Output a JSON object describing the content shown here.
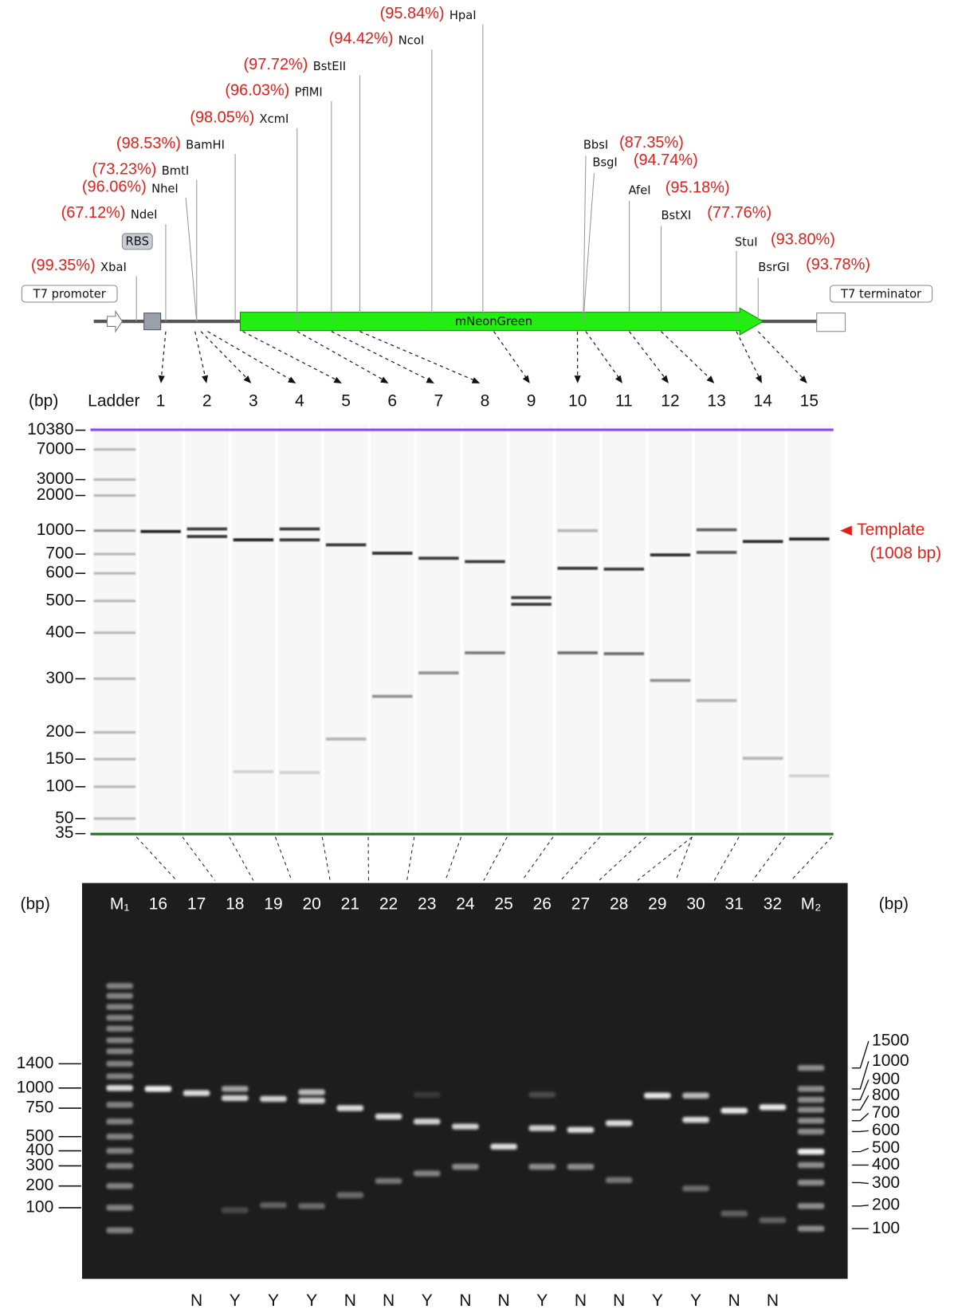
{
  "map": {
    "features": {
      "promoter": "T7 promoter",
      "rbs": "RBS",
      "gene": "mNeonGreen",
      "terminator": "T7 terminator"
    },
    "sites": [
      {
        "name": "XbaI",
        "efficiency": "(99.35%)"
      },
      {
        "name": "NdeI",
        "efficiency": "(67.12%)"
      },
      {
        "name": "NheI",
        "efficiency": "(96.06%)"
      },
      {
        "name": "BmtI",
        "efficiency": "(73.23%)"
      },
      {
        "name": "BamHI",
        "efficiency": "(98.53%)"
      },
      {
        "name": "XcmI",
        "efficiency": "(98.05%)"
      },
      {
        "name": "PflMI",
        "efficiency": "(96.03%)"
      },
      {
        "name": "BstEII",
        "efficiency": "(97.72%)"
      },
      {
        "name": "NcoI",
        "efficiency": "(94.42%)"
      },
      {
        "name": "HpaI",
        "efficiency": "(95.84%)"
      },
      {
        "name": "BbsI",
        "efficiency": "(87.35%)"
      },
      {
        "name": "BsgI",
        "efficiency": "(94.74%)"
      },
      {
        "name": "AfeI",
        "efficiency": "(95.18%)"
      },
      {
        "name": "BstXI",
        "efficiency": "(77.76%)"
      },
      {
        "name": "StuI",
        "efficiency": "(93.80%)"
      },
      {
        "name": "BsrGI",
        "efficiency": "(93.78%)"
      }
    ]
  },
  "gel_top": {
    "unit": "(bp)",
    "ladder": "Ladder",
    "lanes": [
      "1",
      "2",
      "3",
      "4",
      "5",
      "6",
      "7",
      "8",
      "9",
      "10",
      "11",
      "12",
      "13",
      "14",
      "15"
    ],
    "sizes": [
      10380,
      7000,
      3000,
      2000,
      1000,
      700,
      600,
      500,
      400,
      300,
      200,
      150,
      100,
      50,
      35
    ],
    "annotation": {
      "label": "Template",
      "size": "(1008 bp)"
    }
  },
  "gel_bottom": {
    "unit_left": "(bp)",
    "unit_right": "(bp)",
    "lanes": [
      "M₁",
      "16",
      "17",
      "18",
      "19",
      "20",
      "21",
      "22",
      "23",
      "24",
      "25",
      "26",
      "27",
      "28",
      "29",
      "30",
      "31",
      "32",
      "M₂"
    ],
    "sizes_left": [
      1400,
      1000,
      750,
      500,
      400,
      300,
      200,
      100
    ],
    "sizes_right": [
      1500,
      1000,
      900,
      800,
      700,
      600,
      500,
      400,
      300,
      200,
      100
    ],
    "results": [
      "N",
      "Y",
      "Y",
      "Y",
      "N",
      "N",
      "Y",
      "N",
      "N",
      "Y",
      "N",
      "N",
      "Y",
      "Y",
      "N",
      "N"
    ]
  }
}
